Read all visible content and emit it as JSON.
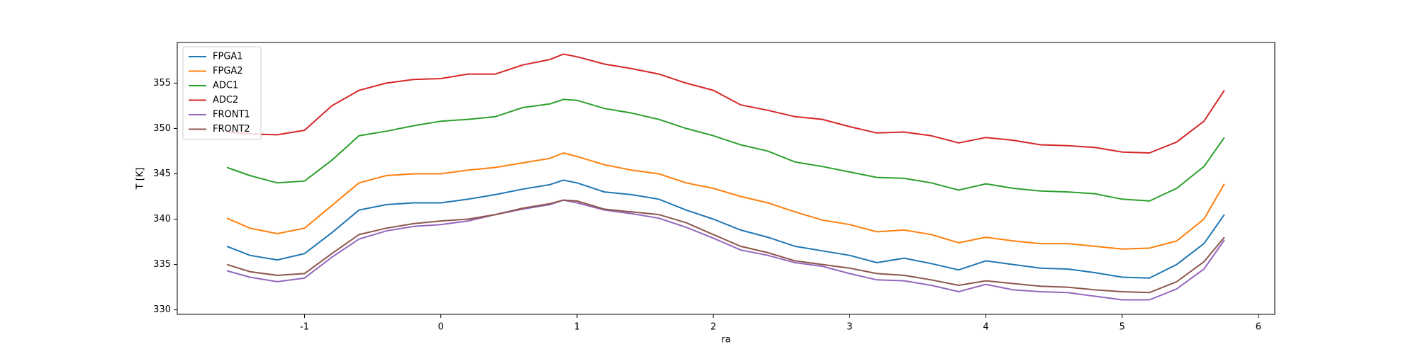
{
  "chart_data": {
    "type": "line",
    "xlabel": "ra",
    "ylabel": "T [K]",
    "x": [
      -1.57,
      -1.4,
      -1.2,
      -1.0,
      -0.8,
      -0.6,
      -0.4,
      -0.2,
      0,
      0.2,
      0.4,
      0.6,
      0.8,
      0.9,
      1.0,
      1.2,
      1.4,
      1.6,
      1.8,
      2.0,
      2.2,
      2.4,
      2.6,
      2.8,
      3.0,
      3.2,
      3.4,
      3.6,
      3.8,
      4.0,
      4.2,
      4.4,
      4.6,
      4.8,
      5.0,
      5.2,
      5.4,
      5.6,
      5.75
    ],
    "series": [
      {
        "name": "FPGA1",
        "color": "#1f77b4",
        "values": [
          337,
          336,
          335.5,
          336.2,
          338.5,
          341,
          341.6,
          341.8,
          341.8,
          342.2,
          342.7,
          343.3,
          343.8,
          344.3,
          344,
          343,
          342.7,
          342.2,
          341,
          340,
          338.8,
          338,
          337,
          336.5,
          336,
          335.2,
          335.7,
          335.1,
          334.4,
          335.4,
          335,
          334.6,
          334.5,
          334.1,
          333.6,
          333.5,
          335,
          337.3,
          340.5
        ]
      },
      {
        "name": "FPGA2",
        "color": "#ff7f0e",
        "values": [
          340.1,
          339,
          338.4,
          339,
          341.5,
          344,
          344.8,
          345,
          345,
          345.4,
          345.7,
          346.2,
          346.7,
          347.3,
          346.9,
          346,
          345.4,
          345,
          344,
          343.4,
          342.5,
          341.8,
          340.8,
          339.9,
          339.4,
          338.6,
          338.8,
          338.3,
          337.4,
          338,
          337.6,
          337.3,
          337.3,
          337,
          336.7,
          336.8,
          337.6,
          340,
          343.9
        ]
      },
      {
        "name": "ADC1",
        "color": "#2ca02c",
        "values": [
          345.7,
          344.8,
          344,
          344.2,
          346.5,
          349.2,
          349.7,
          350.3,
          350.8,
          351,
          351.3,
          352.3,
          352.7,
          353.2,
          353.1,
          352.2,
          351.7,
          351,
          350,
          349.2,
          348.2,
          347.5,
          346.3,
          345.8,
          345.2,
          344.6,
          344.5,
          344,
          343.2,
          343.9,
          343.4,
          343.1,
          343,
          342.8,
          342.2,
          342,
          343.4,
          345.8,
          349
        ]
      },
      {
        "name": "ADC2",
        "color": "#d62728",
        "values": [
          349.6,
          349.4,
          349.3,
          349.8,
          352.5,
          354.2,
          355,
          355.4,
          355.5,
          356,
          356,
          357,
          357.6,
          358.2,
          357.9,
          357.1,
          356.6,
          356,
          355,
          354.2,
          352.6,
          352,
          351.3,
          351,
          350.2,
          349.5,
          349.6,
          349.2,
          348.4,
          349,
          348.7,
          348.2,
          348.1,
          347.9,
          347.4,
          347.3,
          348.5,
          350.8,
          354.2
        ]
      },
      {
        "name": "FRONT1",
        "color": "#9467bd",
        "values": [
          334.3,
          333.6,
          333.1,
          333.5,
          335.8,
          337.8,
          338.7,
          339.2,
          339.4,
          339.8,
          340.5,
          341.1,
          341.6,
          342.1,
          341.8,
          341,
          340.6,
          340.1,
          339.1,
          337.9,
          336.6,
          336,
          335.2,
          334.8,
          334,
          333.3,
          333.2,
          332.7,
          332,
          332.8,
          332.2,
          332,
          331.9,
          331.5,
          331.1,
          331.1,
          332.3,
          334.5,
          337.7
        ]
      },
      {
        "name": "FRONT2",
        "color": "#8c564b",
        "values": [
          335,
          334.2,
          333.8,
          334,
          336.2,
          338.3,
          339,
          339.5,
          339.8,
          340,
          340.5,
          341.2,
          341.7,
          342.1,
          342,
          341.1,
          340.8,
          340.5,
          339.6,
          338.3,
          337,
          336.3,
          335.4,
          335,
          334.6,
          334,
          333.8,
          333.3,
          332.7,
          333.2,
          332.9,
          332.6,
          332.5,
          332.2,
          332,
          331.9,
          333.1,
          335.3,
          338
        ]
      }
    ],
    "xlim": [
      -1.934,
      6.12
    ],
    "ylim": [
      329.5,
      359.48
    ],
    "xticks": [
      -1,
      0,
      1,
      2,
      3,
      4,
      5,
      6
    ],
    "yticks": [
      330,
      335,
      340,
      345,
      350,
      355
    ],
    "legend": "upper left"
  }
}
